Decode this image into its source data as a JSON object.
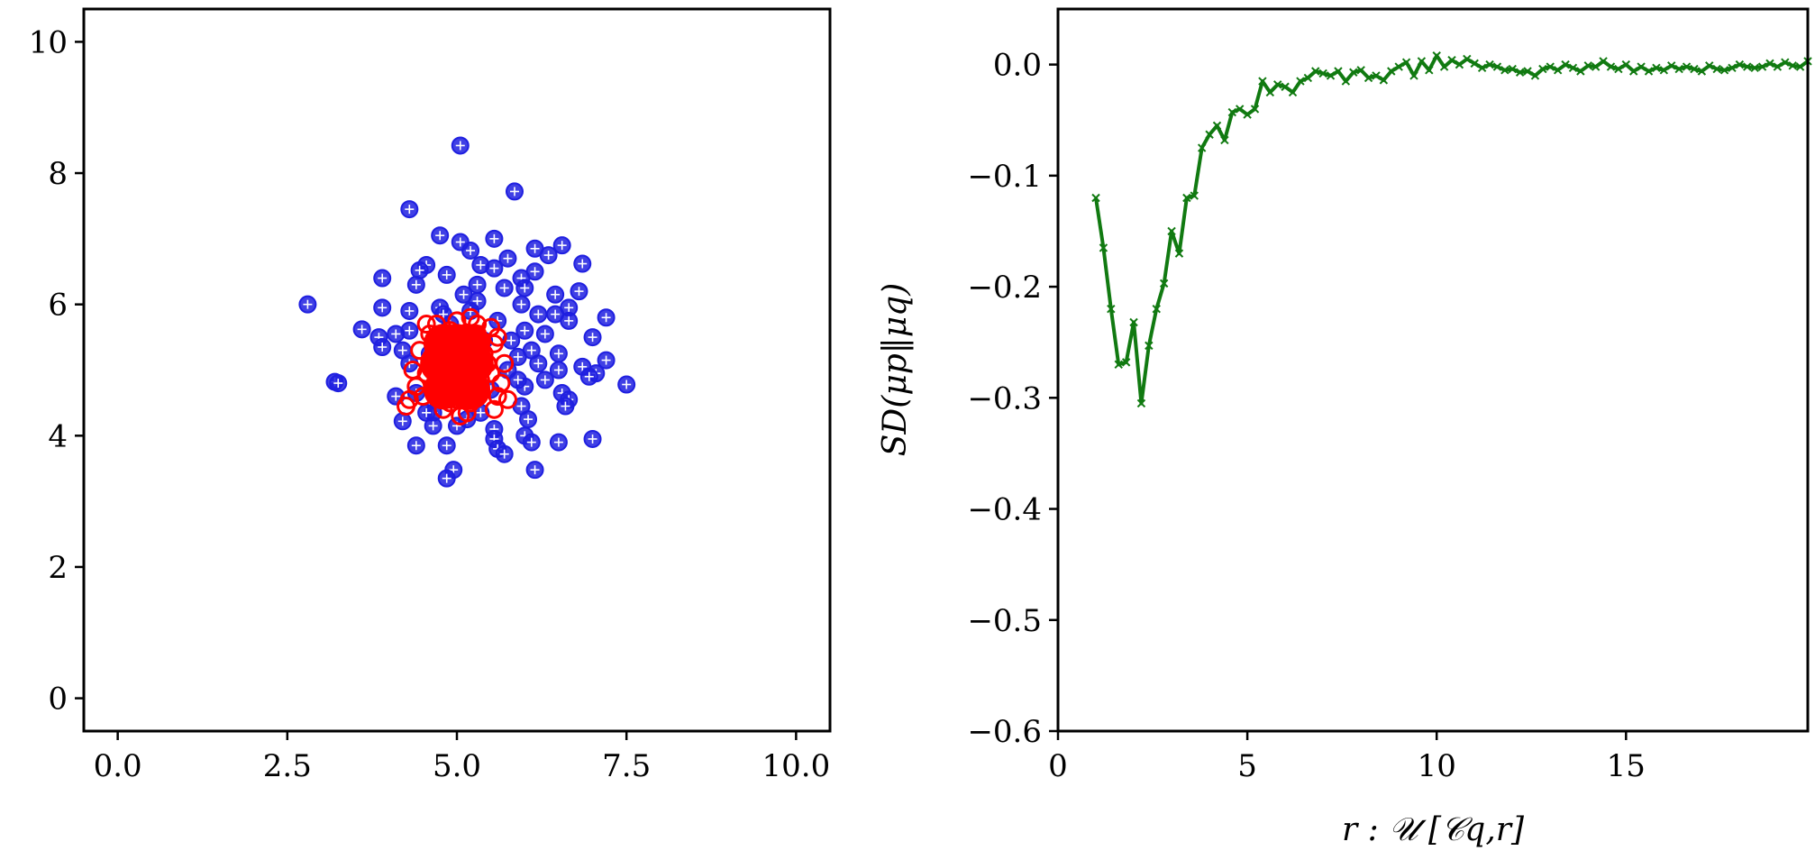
{
  "chart_data": [
    {
      "type": "scatter",
      "xlim": [
        -0.5,
        10.5
      ],
      "ylim": [
        -0.5,
        10.5
      ],
      "xticks": [
        "0.0",
        "2.5",
        "5.0",
        "7.5",
        "10.0"
      ],
      "yticks": [
        "0",
        "2",
        "4",
        "6",
        "8",
        "10"
      ],
      "grid": false,
      "series": [
        {
          "color": "#1f1fe0",
          "marker": "circle-plus",
          "points": [
            [
              5.05,
              8.42
            ],
            [
              5.85,
              7.72
            ],
            [
              4.3,
              7.45
            ],
            [
              4.75,
              7.05
            ],
            [
              5.55,
              7.0
            ],
            [
              5.05,
              6.95
            ],
            [
              6.55,
              6.9
            ],
            [
              6.15,
              6.85
            ],
            [
              5.2,
              6.82
            ],
            [
              5.75,
              6.7
            ],
            [
              6.35,
              6.75
            ],
            [
              4.55,
              6.6
            ],
            [
              4.45,
              6.52
            ],
            [
              4.85,
              6.45
            ],
            [
              5.55,
              6.55
            ],
            [
              5.95,
              6.4
            ],
            [
              3.9,
              6.4
            ],
            [
              6.85,
              6.62
            ],
            [
              4.4,
              6.3
            ],
            [
              5.3,
              6.3
            ],
            [
              6.0,
              6.25
            ],
            [
              6.8,
              6.2
            ],
            [
              6.45,
              6.15
            ],
            [
              2.8,
              6.0
            ],
            [
              3.9,
              5.95
            ],
            [
              4.3,
              5.9
            ],
            [
              5.3,
              6.05
            ],
            [
              5.95,
              6.0
            ],
            [
              6.65,
              5.95
            ],
            [
              4.75,
              5.95
            ],
            [
              6.2,
              5.85
            ],
            [
              7.2,
              5.8
            ],
            [
              6.45,
              5.85
            ],
            [
              6.65,
              5.75
            ],
            [
              3.6,
              5.62
            ],
            [
              3.85,
              5.5
            ],
            [
              4.1,
              5.55
            ],
            [
              4.3,
              5.6
            ],
            [
              6.0,
              5.6
            ],
            [
              6.3,
              5.55
            ],
            [
              5.8,
              5.45
            ],
            [
              7.0,
              5.5
            ],
            [
              3.9,
              5.35
            ],
            [
              4.2,
              5.3
            ],
            [
              6.1,
              5.3
            ],
            [
              6.5,
              5.25
            ],
            [
              7.2,
              5.15
            ],
            [
              4.3,
              5.1
            ],
            [
              6.2,
              5.1
            ],
            [
              6.85,
              5.05
            ],
            [
              6.5,
              5.0
            ],
            [
              7.05,
              4.95
            ],
            [
              6.95,
              4.9
            ],
            [
              6.3,
              4.85
            ],
            [
              3.2,
              4.82
            ],
            [
              3.25,
              4.8
            ],
            [
              7.5,
              4.78
            ],
            [
              6.0,
              4.75
            ],
            [
              6.55,
              4.65
            ],
            [
              4.4,
              4.65
            ],
            [
              6.65,
              4.55
            ],
            [
              4.1,
              4.6
            ],
            [
              5.95,
              4.45
            ],
            [
              6.6,
              4.45
            ],
            [
              4.65,
              4.35
            ],
            [
              5.35,
              4.35
            ],
            [
              6.05,
              4.25
            ],
            [
              4.2,
              4.22
            ],
            [
              5.0,
              4.15
            ],
            [
              4.65,
              4.15
            ],
            [
              5.55,
              4.1
            ],
            [
              6.0,
              4.0
            ],
            [
              7.0,
              3.95
            ],
            [
              5.55,
              3.95
            ],
            [
              6.1,
              3.9
            ],
            [
              6.5,
              3.9
            ],
            [
              4.4,
              3.85
            ],
            [
              4.85,
              3.85
            ],
            [
              5.6,
              3.8
            ],
            [
              5.7,
              3.72
            ],
            [
              4.95,
              3.48
            ],
            [
              6.15,
              3.48
            ],
            [
              4.85,
              3.35
            ],
            [
              5.2,
              5.9
            ],
            [
              5.6,
              5.75
            ],
            [
              4.9,
              5.7
            ],
            [
              5.4,
              5.45
            ],
            [
              5.9,
              5.2
            ],
            [
              5.75,
              5.0
            ],
            [
              5.9,
              4.85
            ],
            [
              5.5,
              4.7
            ],
            [
              4.55,
              4.35
            ],
            [
              5.15,
              4.25
            ],
            [
              4.8,
              5.85
            ],
            [
              5.1,
              6.15
            ],
            [
              5.7,
              6.25
            ],
            [
              4.6,
              5.25
            ],
            [
              5.35,
              6.6
            ],
            [
              6.15,
              6.5
            ]
          ]
        },
        {
          "color": "#ff0000",
          "marker": "circle",
          "points": [
            [
              5.0,
              5.0
            ],
            [
              4.8,
              5.1
            ],
            [
              5.2,
              5.2
            ],
            [
              4.9,
              4.8
            ],
            [
              5.1,
              4.9
            ],
            [
              4.7,
              4.9
            ],
            [
              5.3,
              5.0
            ],
            [
              5.0,
              5.35
            ],
            [
              4.85,
              5.3
            ],
            [
              5.15,
              5.4
            ],
            [
              4.95,
              4.65
            ],
            [
              5.25,
              4.75
            ],
            [
              4.6,
              5.15
            ],
            [
              5.4,
              5.25
            ],
            [
              4.65,
              4.7
            ],
            [
              5.35,
              4.7
            ],
            [
              5.05,
              5.55
            ],
            [
              4.75,
              5.5
            ],
            [
              5.3,
              5.55
            ],
            [
              4.55,
              4.95
            ],
            [
              5.5,
              4.95
            ],
            [
              4.9,
              4.5
            ],
            [
              5.2,
              4.5
            ],
            [
              4.45,
              5.3
            ],
            [
              5.55,
              5.4
            ],
            [
              4.5,
              4.6
            ],
            [
              5.6,
              4.6
            ],
            [
              5.0,
              5.75
            ],
            [
              4.7,
              5.7
            ],
            [
              5.3,
              5.7
            ],
            [
              4.35,
              5.0
            ],
            [
              5.7,
              5.1
            ],
            [
              4.8,
              4.4
            ],
            [
              5.15,
              4.35
            ],
            [
              4.4,
              4.75
            ],
            [
              5.65,
              4.8
            ],
            [
              5.6,
              5.5
            ],
            [
              4.6,
              5.55
            ],
            [
              5.05,
              4.3
            ],
            [
              4.3,
              4.55
            ],
            [
              4.25,
              4.45
            ],
            [
              5.75,
              4.55
            ],
            [
              5.55,
              4.4
            ],
            [
              4.95,
              5.15
            ],
            [
              5.1,
              4.7
            ],
            [
              4.85,
              4.95
            ],
            [
              5.25,
              5.45
            ],
            [
              4.75,
              5.2
            ],
            [
              5.45,
              5.1
            ],
            [
              4.65,
              5.4
            ],
            [
              5.35,
              4.85
            ],
            [
              5.0,
              4.55
            ],
            [
              4.9,
              5.6
            ],
            [
              5.2,
              5.8
            ],
            [
              4.55,
              5.7
            ],
            [
              5.5,
              5.65
            ]
          ]
        }
      ]
    },
    {
      "type": "line",
      "xlim": [
        0,
        19.8
      ],
      "ylim": [
        -0.6,
        0.05
      ],
      "xticks": [
        "0",
        "5",
        "10",
        "15"
      ],
      "yticks": [
        "0.0",
        "−0.1",
        "−0.2",
        "−0.3",
        "−0.4",
        "−0.5",
        "−0.6"
      ],
      "xlabel": "r : 𝒰 [𝒞q,r]",
      "ylabel": "SD(μp‖μq)",
      "grid": false,
      "series": [
        {
          "color": "#117a11",
          "marker": "x",
          "x": [
            1.0,
            1.2,
            1.4,
            1.6,
            1.8,
            2.0,
            2.2,
            2.4,
            2.6,
            2.8,
            3.0,
            3.2,
            3.4,
            3.6,
            3.8,
            4.0,
            4.2,
            4.4,
            4.6,
            4.8,
            5.0,
            5.2,
            5.4,
            5.6,
            5.8,
            6.0,
            6.2,
            6.4,
            6.6,
            6.8,
            7.0,
            7.2,
            7.4,
            7.6,
            7.8,
            8.0,
            8.2,
            8.4,
            8.6,
            8.8,
            9.0,
            9.2,
            9.4,
            9.6,
            9.8,
            10.0,
            10.2,
            10.4,
            10.6,
            10.8,
            11.0,
            11.2,
            11.4,
            11.6,
            11.8,
            12.0,
            12.2,
            12.4,
            12.6,
            12.8,
            13.0,
            13.2,
            13.4,
            13.6,
            13.8,
            14.0,
            14.2,
            14.4,
            14.6,
            14.8,
            15.0,
            15.2,
            15.4,
            15.6,
            15.8,
            16.0,
            16.2,
            16.4,
            16.6,
            16.8,
            17.0,
            17.2,
            17.4,
            17.6,
            17.8,
            18.0,
            18.2,
            18.4,
            18.6,
            18.8,
            19.0,
            19.2,
            19.4,
            19.6,
            19.8
          ],
          "y": [
            -0.12,
            -0.165,
            -0.22,
            -0.27,
            -0.268,
            -0.232,
            -0.305,
            -0.253,
            -0.22,
            -0.197,
            -0.15,
            -0.17,
            -0.12,
            -0.118,
            -0.075,
            -0.063,
            -0.055,
            -0.068,
            -0.043,
            -0.04,
            -0.045,
            -0.04,
            -0.015,
            -0.025,
            -0.018,
            -0.02,
            -0.025,
            -0.015,
            -0.012,
            -0.006,
            -0.008,
            -0.01,
            -0.006,
            -0.015,
            -0.007,
            -0.005,
            -0.012,
            -0.01,
            -0.014,
            -0.006,
            -0.002,
            0.002,
            -0.01,
            0.003,
            -0.005,
            0.008,
            -0.002,
            0.004,
            0.0,
            0.005,
            0.001,
            -0.003,
            0.0,
            -0.002,
            -0.005,
            -0.004,
            -0.007,
            -0.006,
            -0.01,
            -0.004,
            -0.002,
            -0.005,
            0.0,
            -0.003,
            -0.006,
            -0.001,
            -0.002,
            0.003,
            -0.002,
            -0.004,
            0.0,
            -0.006,
            -0.002,
            -0.006,
            -0.003,
            -0.005,
            -0.001,
            -0.004,
            -0.002,
            -0.004,
            -0.006,
            -0.001,
            -0.004,
            -0.005,
            -0.003,
            0.0,
            -0.002,
            -0.003,
            -0.002,
            0.001,
            -0.002,
            0.002,
            -0.001,
            -0.002,
            0.003
          ]
        }
      ]
    }
  ]
}
